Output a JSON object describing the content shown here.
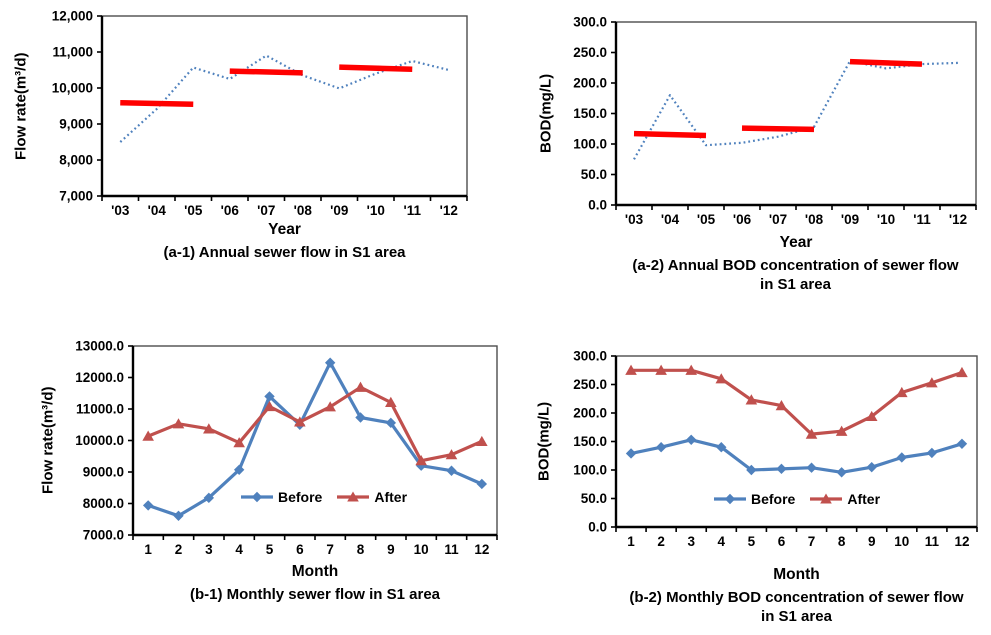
{
  "colors": {
    "series_blue": "#4f81bd",
    "series_red": "#c0504d",
    "trend_red": "#ff0000",
    "axis_black": "#000000",
    "border_gray": "#4d4d4d",
    "text_black": "#000000",
    "background": "#ffffff"
  },
  "chart_data": [
    {
      "id": "a-1",
      "type": "line",
      "caption": "(a-1) Annual sewer flow in S1 area",
      "x_axis_title": "Year",
      "y_axis_title": "Flow rate(m³/d)",
      "ylim": [
        7000,
        12000
      ],
      "grid": false,
      "legend_position": "none",
      "y_ticks": [
        {
          "value": 12000,
          "label": "12,000"
        },
        {
          "value": 11000,
          "label": "11,000"
        },
        {
          "value": 10000,
          "label": "10,000"
        },
        {
          "value": 9000,
          "label": "9,000"
        },
        {
          "value": 8000,
          "label": "8,000"
        },
        {
          "value": 7000,
          "label": "7,000"
        }
      ],
      "x_labels": [
        "'03",
        "'04",
        "'05",
        "'06",
        "'07",
        "'08",
        "'09",
        "'10",
        "'11",
        "'12"
      ],
      "series": [
        {
          "name": "annual-flow",
          "style": "dotted",
          "marker": "none",
          "color": "series_blue",
          "values": [
            8500,
            9420,
            10570,
            10250,
            10900,
            10350,
            9990,
            10400,
            10750,
            10500
          ]
        }
      ],
      "trend_segments": [
        {
          "from_index": 0,
          "to_index": 2,
          "y_start": 9590,
          "y_end": 9550
        },
        {
          "from_index": 3,
          "to_index": 5,
          "y_start": 10470,
          "y_end": 10420
        },
        {
          "from_index": 6,
          "to_index": 8,
          "y_start": 10580,
          "y_end": 10520
        }
      ],
      "legend": []
    },
    {
      "id": "a-2",
      "type": "line",
      "caption": "(a-2) Annual BOD concentration of sewer flow in S1 area",
      "x_axis_title": "Year",
      "y_axis_title": "BOD(mg/L)",
      "ylim": [
        0,
        300
      ],
      "grid": false,
      "legend_position": "none",
      "y_ticks": [
        {
          "value": 300,
          "label": "300.0"
        },
        {
          "value": 250,
          "label": "250.0"
        },
        {
          "value": 200,
          "label": "200.0"
        },
        {
          "value": 150,
          "label": "150.0"
        },
        {
          "value": 100,
          "label": "100.0"
        },
        {
          "value": 50,
          "label": "50.0"
        },
        {
          "value": 0,
          "label": "0.0"
        }
      ],
      "x_labels": [
        "'03",
        "'04",
        "'05",
        "'06",
        "'07",
        "'08",
        "'09",
        "'10",
        "'11",
        "'12"
      ],
      "series": [
        {
          "name": "annual-bod",
          "style": "dotted",
          "marker": "none",
          "color": "series_blue",
          "values": [
            75,
            180,
            98,
            102,
            112,
            128,
            236,
            224,
            231,
            233
          ]
        }
      ],
      "trend_segments": [
        {
          "from_index": 0,
          "to_index": 2,
          "y_start": 117,
          "y_end": 114
        },
        {
          "from_index": 3,
          "to_index": 5,
          "y_start": 126,
          "y_end": 124
        },
        {
          "from_index": 6,
          "to_index": 8,
          "y_start": 235,
          "y_end": 231
        }
      ],
      "legend": []
    },
    {
      "id": "b-1",
      "type": "line",
      "caption": "(b-1)  Monthly sewer flow in S1 area",
      "x_axis_title": "Month",
      "y_axis_title": "Flow rate(m³/d)",
      "ylim": [
        7000,
        13000
      ],
      "grid": false,
      "legend_position": "inside-bottom-center",
      "y_ticks": [
        {
          "value": 13000,
          "label": "13000.0"
        },
        {
          "value": 12000,
          "label": "12000.0"
        },
        {
          "value": 11000,
          "label": "11000.0"
        },
        {
          "value": 10000,
          "label": "10000.0"
        },
        {
          "value": 9000,
          "label": "9000.0"
        },
        {
          "value": 8000,
          "label": "8000.0"
        },
        {
          "value": 7000,
          "label": "7000.0"
        }
      ],
      "x_labels": [
        "1",
        "2",
        "3",
        "4",
        "5",
        "6",
        "7",
        "8",
        "9",
        "10",
        "11",
        "12"
      ],
      "series": [
        {
          "name": "before",
          "style": "solid",
          "marker": "diamond",
          "color": "series_blue",
          "values": [
            7940,
            7610,
            8180,
            9070,
            11400,
            10500,
            12470,
            10730,
            10560,
            9200,
            9040,
            8620
          ]
        },
        {
          "name": "after",
          "style": "solid",
          "marker": "triangle",
          "color": "series_red",
          "values": [
            10140,
            10530,
            10370,
            9930,
            11080,
            10590,
            11070,
            11690,
            11210,
            9360,
            9550,
            9970
          ]
        }
      ],
      "trend_segments": [],
      "legend": [
        {
          "label": "Before",
          "series": "before"
        },
        {
          "label": "After",
          "series": "after"
        }
      ]
    },
    {
      "id": "b-2",
      "type": "line",
      "caption": "(b-2) Monthly  BOD concentration of sewer flow in S1 area",
      "x_axis_title": "Month",
      "y_axis_title": "BOD(mg/L)",
      "ylim": [
        0,
        300
      ],
      "grid": false,
      "legend_position": "inside-bottom-center",
      "y_ticks": [
        {
          "value": 300,
          "label": "300.0"
        },
        {
          "value": 250,
          "label": "250.0"
        },
        {
          "value": 200,
          "label": "200.0"
        },
        {
          "value": 150,
          "label": "150.0"
        },
        {
          "value": 100,
          "label": "100.0"
        },
        {
          "value": 50,
          "label": "50.0"
        },
        {
          "value": 0,
          "label": "0.0"
        }
      ],
      "x_labels": [
        "1",
        "2",
        "3",
        "4",
        "5",
        "6",
        "7",
        "8",
        "9",
        "10",
        "11",
        "12"
      ],
      "series": [
        {
          "name": "before",
          "style": "solid",
          "marker": "diamond",
          "color": "series_blue",
          "values": [
            129,
            140,
            153,
            140,
            100,
            102,
            104,
            96,
            105,
            122,
            130,
            146
          ]
        },
        {
          "name": "after",
          "style": "solid",
          "marker": "triangle",
          "color": "series_red",
          "values": [
            275,
            275,
            275,
            260,
            223,
            213,
            163,
            168,
            194,
            236,
            253,
            271
          ]
        }
      ],
      "trend_segments": [],
      "legend": [
        {
          "label": "Before",
          "series": "before"
        },
        {
          "label": "After",
          "series": "after"
        }
      ]
    }
  ]
}
